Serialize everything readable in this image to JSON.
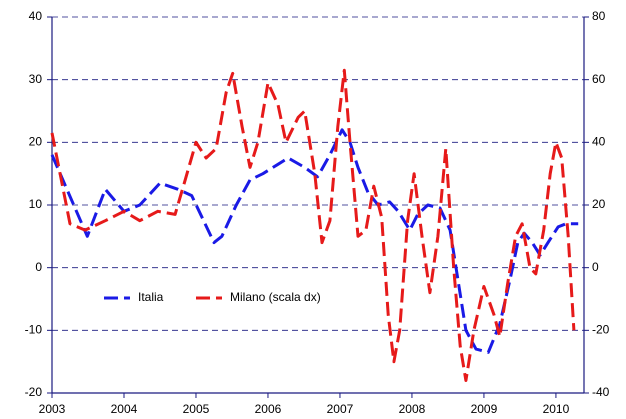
{
  "chart_data": {
    "type": "line",
    "series": [
      {
        "name": "Italia",
        "color": "#1a1ae6",
        "axis": "y",
        "x": [
          2003.0,
          2003.49,
          2003.74,
          2004.0,
          2004.22,
          2004.5,
          2004.75,
          2004.94,
          2005.25,
          2005.36,
          2005.56,
          2005.75,
          2005.93,
          2006.14,
          2006.28,
          2006.51,
          2006.69,
          2006.86,
          2007.03,
          2007.14,
          2007.25,
          2007.39,
          2007.53,
          2007.69,
          2007.81,
          2007.97,
          2008.08,
          2008.22,
          2008.39,
          2008.53,
          2008.64,
          2008.75,
          2008.89,
          2009.06,
          2009.22,
          2009.36,
          2009.47,
          2009.56,
          2009.67,
          2009.78,
          2009.89,
          2010.03,
          2010.14,
          2010.31
        ],
        "values": [
          18,
          5,
          12.5,
          9,
          10,
          13.5,
          12.5,
          11.5,
          4,
          5,
          10,
          14,
          15,
          16.5,
          17.5,
          16,
          14.5,
          18,
          22,
          20,
          16,
          12,
          10,
          10.5,
          9,
          6,
          8.5,
          10,
          9.5,
          6,
          -2,
          -10,
          -13,
          -13.5,
          -9,
          -2,
          4,
          5.5,
          4,
          2,
          4,
          6.5,
          7,
          7
        ]
      },
      {
        "name": "Milano (scala dx)",
        "color": "#e61a1a",
        "axis": "y2",
        "x": [
          2003.0,
          2003.25,
          2003.46,
          2003.74,
          2004.0,
          2004.22,
          2004.47,
          2004.71,
          2004.85,
          2005.0,
          2005.14,
          2005.28,
          2005.42,
          2005.51,
          2005.64,
          2005.75,
          2005.86,
          2006.0,
          2006.14,
          2006.25,
          2006.42,
          2006.51,
          2006.65,
          2006.75,
          2006.86,
          2006.97,
          2007.06,
          2007.14,
          2007.25,
          2007.36,
          2007.47,
          2007.58,
          2007.67,
          2007.75,
          2007.83,
          2007.94,
          2008.03,
          2008.14,
          2008.25,
          2008.36,
          2008.47,
          2008.58,
          2008.67,
          2008.75,
          2008.86,
          2009.0,
          2009.14,
          2009.22,
          2009.33,
          2009.44,
          2009.53,
          2009.64,
          2009.72,
          2009.83,
          2009.92,
          2010.0,
          2010.08,
          2010.17,
          2010.25
        ],
        "values": [
          43,
          14,
          12,
          15,
          18,
          15,
          18,
          17,
          28,
          40,
          35,
          38,
          56,
          62,
          45,
          32,
          40,
          59,
          52,
          40,
          48,
          50,
          30,
          8,
          15,
          45,
          63,
          40,
          10,
          12,
          26,
          16,
          -15,
          -30,
          -20,
          15,
          30,
          10,
          -8,
          10,
          38,
          0,
          -25,
          -36,
          -20,
          -6,
          -15,
          -22,
          -5,
          10,
          14,
          0,
          -2,
          12,
          30,
          40,
          35,
          10,
          -20
        ]
      }
    ],
    "xlim": [
      2003.0,
      2010.39
    ],
    "xticks": [
      2003,
      2004,
      2005,
      2006,
      2007,
      2008,
      2009,
      2010
    ],
    "ylim": [
      -20,
      40
    ],
    "yticks": [
      -20,
      -10,
      0,
      10,
      20,
      30,
      40
    ],
    "y2lim": [
      -40,
      80
    ],
    "y2ticks": [
      -40,
      -20,
      0,
      20,
      40,
      60,
      80
    ],
    "grid": true
  }
}
